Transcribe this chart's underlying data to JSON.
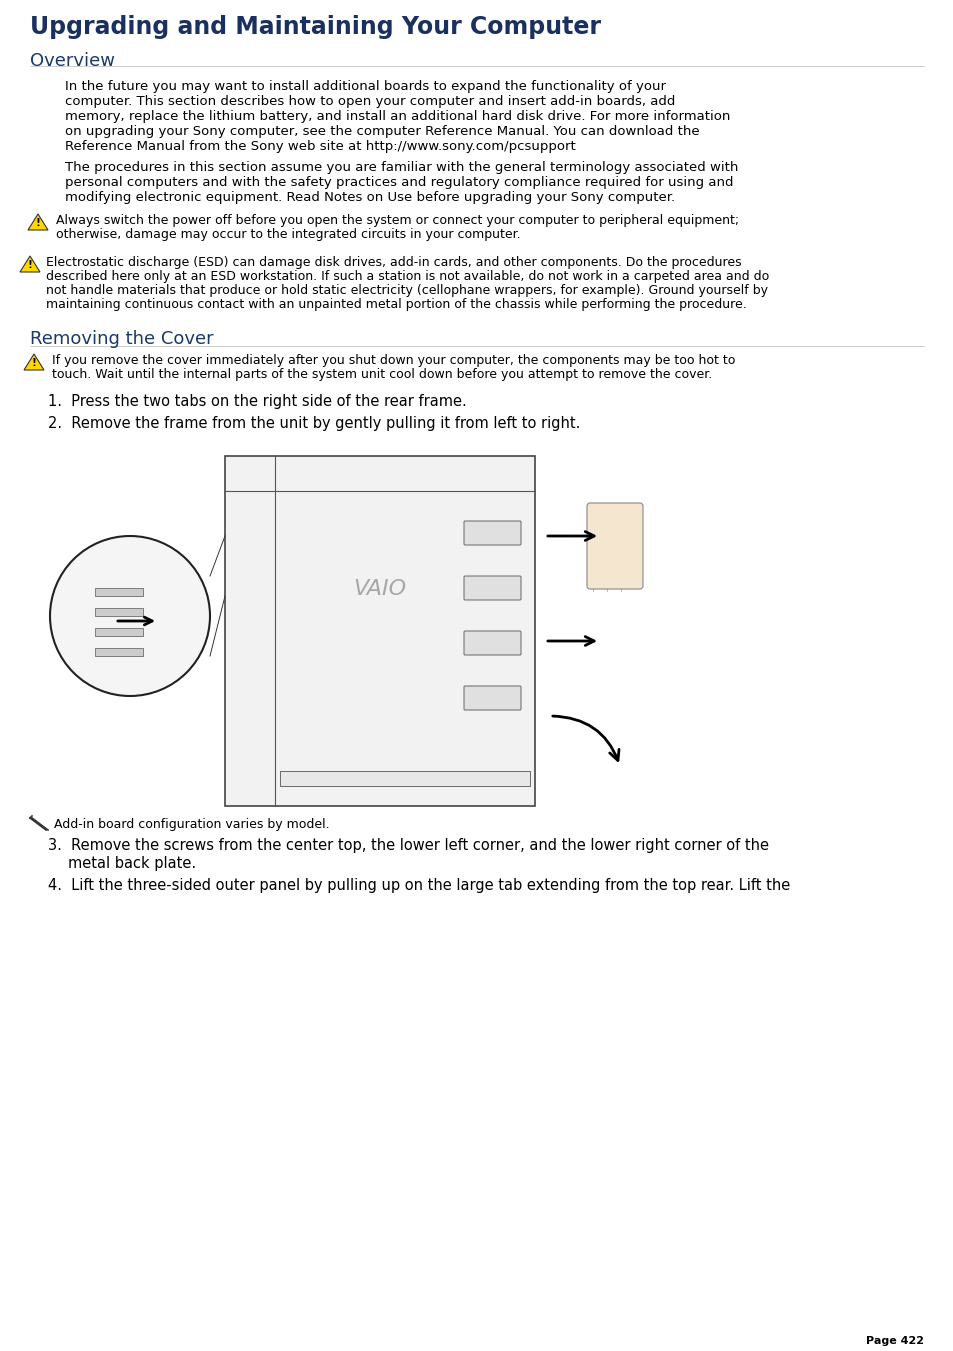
{
  "title": "Upgrading and Maintaining Your Computer",
  "title_color": "#1a3060",
  "title_fontsize": 17,
  "section1_heading": "Overview",
  "section2_heading": "Removing the Cover",
  "heading_color": "#1a3a6b",
  "heading_fontsize": 13,
  "bg_color": "#ffffff",
  "text_color": "#000000",
  "link_color": "#2222cc",
  "body_fontsize": 9.5,
  "small_fontsize": 9,
  "p1_lines": [
    "In the future you may want to install additional boards to expand the functionality of your",
    "computer. This section describes how to open your computer and insert add-in boards, add",
    "memory, replace the lithium battery, and install an additional hard disk drive. For more information",
    "on upgrading your Sony computer, see the computer Reference Manual. You can download the",
    "Reference Manual from the Sony web site at http://www.sony.com/pcsupport"
  ],
  "p2_lines": [
    "The procedures in this section assume you are familiar with the general terminology associated with",
    "personal computers and with the safety practices and regulatory compliance required for using and",
    "modifying electronic equipment. Read Notes on Use before upgrading your Sony computer."
  ],
  "w1_lines": [
    "Always switch the power off before you open the system or connect your computer to peripheral equipment;",
    "otherwise, damage may occur to the integrated circuits in your computer."
  ],
  "w2_lines": [
    "Electrostatic discharge (ESD) can damage disk drives, add-in cards, and other components. Do the procedures",
    "described here only at an ESD workstation. If such a station is not available, do not work in a carpeted area and do",
    "not handle materials that produce or hold static electricity (cellophane wrappers, for example). Ground yourself by",
    "maintaining continuous contact with an unpainted metal portion of the chassis while performing the procedure."
  ],
  "cw_lines": [
    "If you remove the cover immediately after you shut down your computer, the components may be too hot to",
    "touch. Wait until the internal parts of the system unit cool down before you attempt to remove the cover."
  ],
  "step1": "Press the two tabs on the right side of the rear frame.",
  "step2": "Remove the frame from the unit by gently pulling it from left to right.",
  "note1": "Add-in board configuration varies by model.",
  "step3a": "Remove the screws from the center top, the lower left corner, and the lower right corner of the",
  "step3b": "metal back plate.",
  "step4": "Lift the three-sided outer panel by pulling up on the large tab extending from the top rear. Lift the",
  "page_num": "Page 422"
}
